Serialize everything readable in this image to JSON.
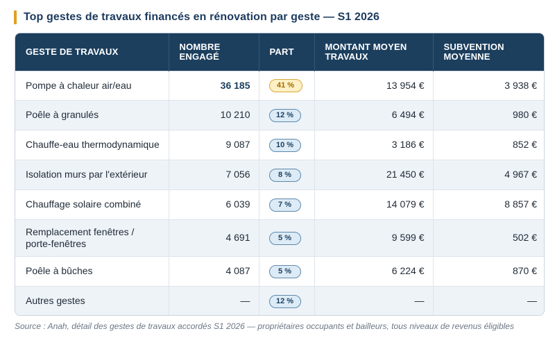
{
  "title": "Top gestes de travaux financés en rénovation par geste — S1 2026",
  "headers": {
    "geste": "GESTE DE TRAVAUX",
    "nombre_l1": "NOMBRE",
    "nombre_l2": "ENGAGÉ",
    "part": "PART",
    "montant_l1": "MONTANT MOYEN",
    "montant_l2": "TRAVAUX",
    "subvention_l1": "SUBVENTION",
    "subvention_l2": "MOYENNE"
  },
  "rows": [
    {
      "geste": "Pompe à chaleur air/eau",
      "nombre": "36 185",
      "part": "41 %",
      "montant": "13 954 €",
      "subvention": "3 938 €"
    },
    {
      "geste": "Poêle à granulés",
      "nombre": "10 210",
      "part": "12 %",
      "montant": "6 494 €",
      "subvention": "980 €"
    },
    {
      "geste": "Chauffe-eau thermodynamique",
      "nombre": "9 087",
      "part": "10 %",
      "montant": "3 186 €",
      "subvention": "852 €"
    },
    {
      "geste": "Isolation murs par l'extérieur",
      "nombre": "7 056",
      "part": "8 %",
      "montant": "21 450 €",
      "subvention": "4 967 €"
    },
    {
      "geste": "Chauffage solaire combiné",
      "nombre": "6 039",
      "part": "7 %",
      "montant": "14 079 €",
      "subvention": "8 857 €"
    },
    {
      "geste_l1": "Remplacement fenêtres /",
      "geste_l2": "porte-fenêtres",
      "nombre": "4 691",
      "part": "5 %",
      "montant": "9 599 €",
      "subvention": "502 €"
    },
    {
      "geste": "Poêle à bûches",
      "nombre": "4 087",
      "part": "5 %",
      "montant": "6 224 €",
      "subvention": "870 €"
    },
    {
      "geste": "Autres gestes",
      "nombre": "—",
      "part": "12 %",
      "montant": "—",
      "subvention": "—"
    }
  ],
  "source": "Source : Anah, détail des gestes de travaux accordés S1 2026 — propriétaires occupants et bailleurs, tous niveaux de revenus éligibles",
  "colors": {
    "header_bg": "#1c3f5e",
    "title": "#1c3a5e",
    "accent": "#e0a020",
    "highlight_pill": "#fdf0c4",
    "pill": "#dcebf6"
  }
}
